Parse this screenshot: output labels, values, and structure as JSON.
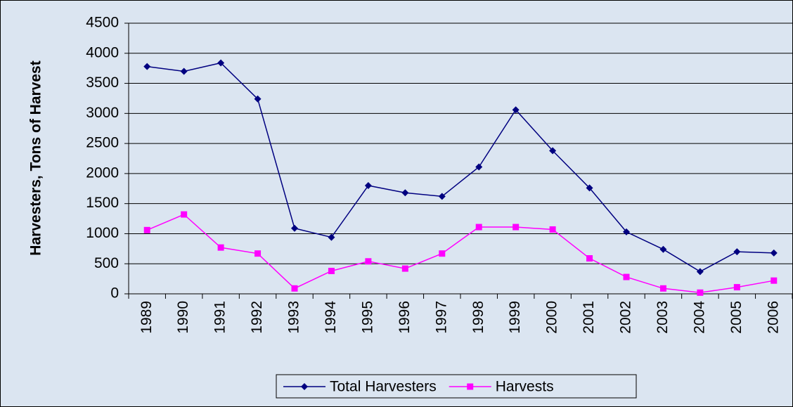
{
  "chart_data": {
    "type": "line",
    "y_label": "Harvesters, Tons of Harvest",
    "categories": [
      "1989",
      "1990",
      "1991",
      "1992",
      "1993",
      "1994",
      "1995",
      "1996",
      "1997",
      "1998",
      "1999",
      "2000",
      "2001",
      "2002",
      "2003",
      "2004",
      "2005",
      "2006"
    ],
    "series": [
      {
        "name": "Total Harvesters",
        "color": "#000080",
        "marker": "diamond",
        "values": [
          3780,
          3700,
          3840,
          3240,
          1090,
          940,
          1800,
          1680,
          1620,
          2110,
          3060,
          2380,
          1760,
          1030,
          740,
          370,
          700,
          680
        ]
      },
      {
        "name": "Harvests",
        "color": "#ff00ff",
        "marker": "square",
        "values": [
          1060,
          1320,
          770,
          670,
          90,
          380,
          540,
          420,
          670,
          1110,
          1110,
          1070,
          590,
          280,
          90,
          20,
          110,
          220
        ]
      }
    ],
    "ylim": [
      0,
      4500
    ],
    "yticks": [
      0,
      500,
      1000,
      1500,
      2000,
      2500,
      3000,
      3500,
      4000,
      4500
    ],
    "grid": true,
    "legend": "bottom"
  }
}
